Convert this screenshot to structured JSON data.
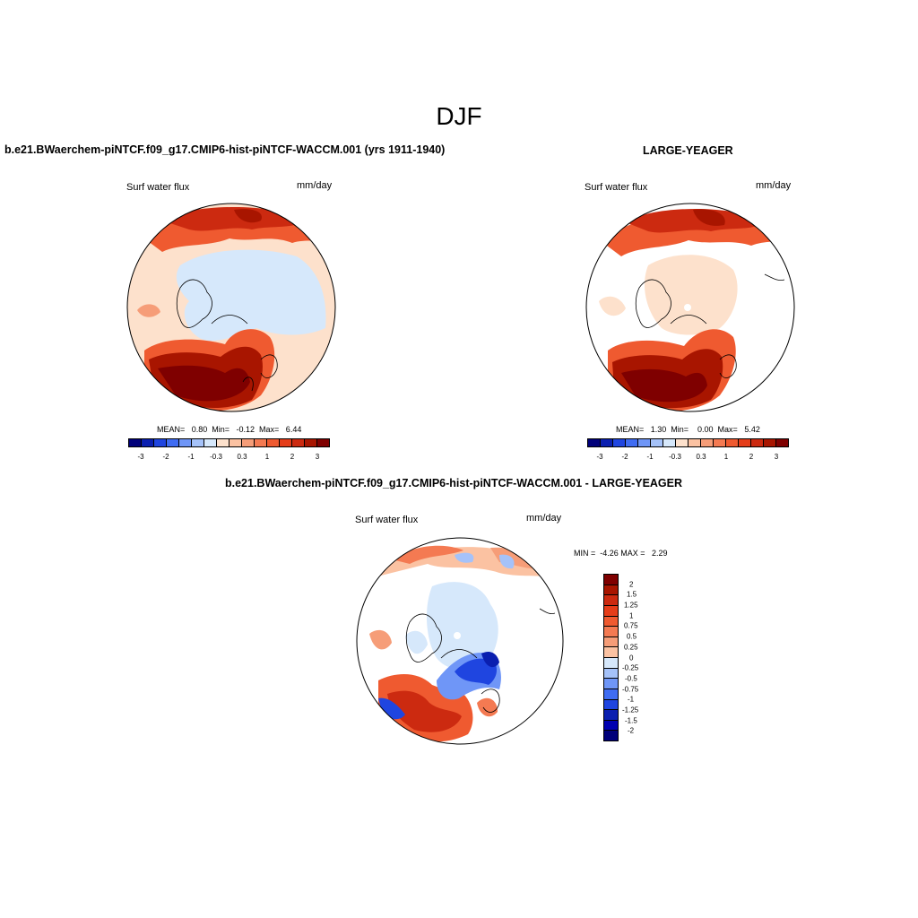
{
  "main_title": "DJF",
  "colors": {
    "neg3": "#00007a",
    "neg2": "#0a1fb0",
    "neg1": "#1f45e0",
    "neg075": "#3f6cf2",
    "neg05": "#6f96f7",
    "neg025": "#a5c2f9",
    "neg01": "#d6e8fb",
    "pos01": "#fde1cc",
    "pos025": "#fbc2a2",
    "pos05": "#f69d78",
    "pos075": "#f47a52",
    "pos1": "#ef5a30",
    "pos125": "#e53d19",
    "pos15": "#cc2a10",
    "pos2": "#a81500",
    "pos3": "#7f0000"
  },
  "panels": [
    {
      "title": "b.e21.BWaerchem-piNTCF.f09_g17.CMIP6-hist-piNTCF-WACCM.001 (yrs 1911-1940)",
      "left_label": "Surf water flux",
      "right_label": "mm/day",
      "stats": "MEAN=   0.80  Min=   -0.12  Max=   6.44",
      "colorbar_ticks": [
        "-3",
        "-2",
        "-1",
        "-0.3",
        "0.3",
        "1",
        "2",
        "3"
      ]
    },
    {
      "title": "LARGE-YEAGER",
      "left_label": "Surf water flux",
      "right_label": "mm/day",
      "stats": "MEAN=   1.30  Min=    0.00  Max=   5.42",
      "colorbar_ticks": [
        "-3",
        "-2",
        "-1",
        "-0.3",
        "0.3",
        "1",
        "2",
        "3"
      ]
    },
    {
      "title": "b.e21.BWaerchem-piNTCF.f09_g17.CMIP6-hist-piNTCF-WACCM.001 - LARGE-YEAGER",
      "left_label": "Surf water flux",
      "right_label": "mm/day",
      "stats": "MIN =  -4.26 MAX =   2.29",
      "colorbar_ticks": [
        "2",
        "1.5",
        "1.25",
        "1",
        "0.75",
        "0.5",
        "0.25",
        "0",
        "-0.25",
        "-0.5",
        "-0.75",
        "-1",
        "-1.25",
        "-1.5",
        "-2"
      ]
    }
  ]
}
